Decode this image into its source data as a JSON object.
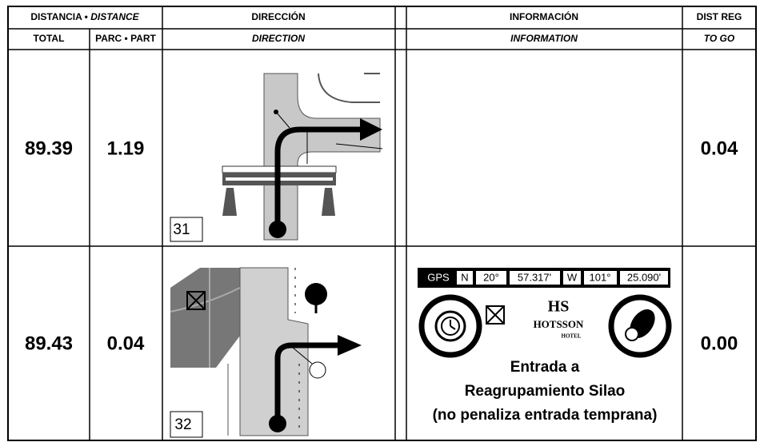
{
  "header": {
    "distance": "DISTANCIA •",
    "distance_en": "DISTANCE",
    "direction": "DIRECCIÓN",
    "information": "INFORMACIÓN",
    "dist_reg": "DIST REG"
  },
  "subheader": {
    "total": "TOTAL",
    "partial": "PARC • PART",
    "direction": "DIRECTION",
    "information": "INFORMATION",
    "to_go": "TO GO"
  },
  "rows": [
    {
      "total": "89.39",
      "partial": "1.19",
      "box": "31",
      "dist_reg": "0.04"
    },
    {
      "total": "89.43",
      "partial": "0.04",
      "box": "32",
      "dist_reg": "0.00",
      "gps": {
        "label": "GPS",
        "n": "N",
        "lat_deg": "20°",
        "lat_min": "57.317'",
        "w": "W",
        "lon_deg": "101°",
        "lon_min": "25.090'"
      },
      "hotel": {
        "logo": "HS",
        "name": "HOTSSON",
        "kind": "HOTEL"
      },
      "info": [
        "Entrada a",
        "Reagrupamiento Silao",
        "(no penaliza entrada temprana)"
      ]
    }
  ]
}
